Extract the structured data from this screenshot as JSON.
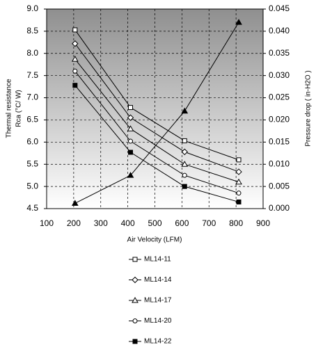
{
  "chart_data": {
    "type": "line",
    "ylabel": [
      "Thermal resistance",
      "Rca (°C/ W)"
    ],
    "y2label": "Pressure drop ( in-H2O )",
    "xlabel": "Air Velocity (LFM)",
    "xlim": [
      100,
      900
    ],
    "xticks": [
      100,
      200,
      300,
      400,
      500,
      600,
      700,
      800,
      900
    ],
    "ylim": [
      4.5,
      9.0
    ],
    "yticks": [
      4.5,
      {
        "value": 5,
        "label": "5.0"
      },
      5.5,
      {
        "value": 6,
        "label": "6.0"
      },
      6.5,
      {
        "value": 7,
        "label": "7.0"
      },
      7.5,
      {
        "value": 8,
        "label": "8.0"
      },
      8.5,
      {
        "value": 9,
        "label": "9.0"
      }
    ],
    "y2lim": [
      0,
      0.045
    ],
    "y2ticks": [
      {
        "value": 0,
        "label": "0.000"
      },
      {
        "value": 0.005,
        "label": "0.005"
      },
      {
        "value": 0.01,
        "label": "0.010"
      },
      {
        "value": 0.015,
        "label": "0.015"
      },
      {
        "value": 0.02,
        "label": "0.020"
      },
      {
        "value": 0.025,
        "label": "0.025"
      },
      {
        "value": 0.03,
        "label": "0.030"
      },
      {
        "value": 0.035,
        "label": "0.035"
      },
      {
        "value": 0.04,
        "label": "0.040"
      },
      {
        "value": 0.045,
        "label": "0.045"
      }
    ],
    "grid": true,
    "x": [
      205,
      410,
      610,
      810
    ],
    "series": [
      {
        "name": "ML14-11",
        "color": "#000000",
        "marker": "square-open",
        "values": [
          8.53,
          6.78,
          6.03,
          5.6
        ]
      },
      {
        "name": "ML14-14",
        "color": "#000000",
        "marker": "diamond-open",
        "values": [
          8.22,
          6.55,
          5.78,
          5.33
        ]
      },
      {
        "name": "ML14-17",
        "color": "#000000",
        "marker": "triangle-open",
        "values": [
          7.87,
          6.3,
          5.5,
          5.1
        ]
      },
      {
        "name": "ML14-20",
        "color": "#000000",
        "marker": "circle-open",
        "values": [
          7.6,
          6.02,
          5.25,
          4.85
        ]
      },
      {
        "name": "ML14-22",
        "color": "#000000",
        "marker": "square-filled",
        "values": [
          7.28,
          5.77,
          5.0,
          4.65
        ]
      },
      {
        "color": "#000000",
        "marker": "triangle-filled",
        "axis": "y2",
        "values": [
          0.0012,
          0.0075,
          0.022,
          0.042
        ]
      }
    ]
  }
}
